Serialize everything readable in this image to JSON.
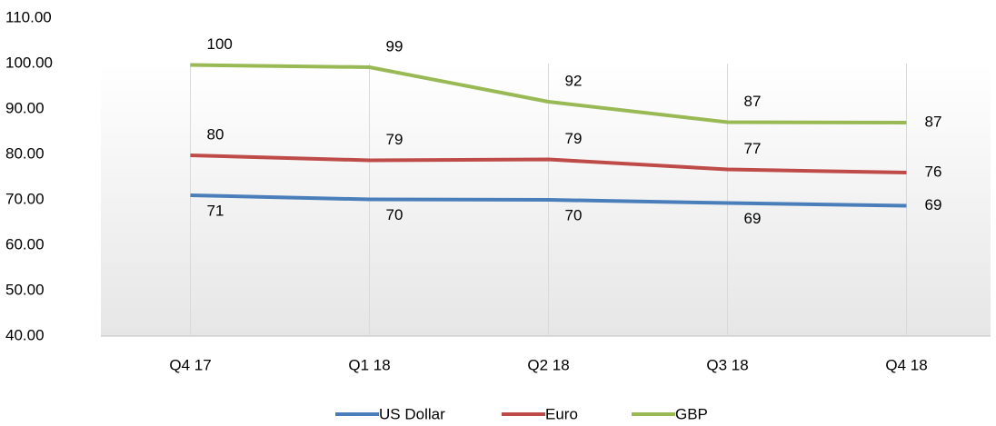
{
  "chart_data": {
    "type": "line",
    "categories": [
      "Q4 17",
      "Q1 18",
      "Q2 18",
      "Q3 18",
      "Q4 18"
    ],
    "series": [
      {
        "name": "US Dollar",
        "color": "#4a7ebb",
        "values": [
          71.0,
          70.1,
          70.0,
          69.3,
          68.7
        ],
        "value_labels": [
          "71",
          "70",
          "70",
          "69",
          "69"
        ]
      },
      {
        "name": "Euro",
        "color": "#be4b48",
        "values": [
          79.8,
          78.7,
          78.9,
          76.7,
          76.0
        ],
        "value_labels": [
          "80",
          "79",
          "79",
          "77",
          "76"
        ]
      },
      {
        "name": "GBP",
        "color": "#98b954",
        "values": [
          99.7,
          99.2,
          91.6,
          87.1,
          87.0
        ],
        "value_labels": [
          "100",
          "99",
          "92",
          "87",
          "87"
        ]
      }
    ],
    "ylim": [
      40,
      110
    ],
    "yticks": [
      {
        "value": 40,
        "label": "40.00"
      },
      {
        "value": 50,
        "label": "50.00"
      },
      {
        "value": 60,
        "label": "60.00"
      },
      {
        "value": 70,
        "label": "70.00"
      },
      {
        "value": 80,
        "label": "80.00"
      },
      {
        "value": 90,
        "label": "90.00"
      },
      {
        "value": 100,
        "label": "100.00"
      },
      {
        "value": 110,
        "label": "110.00"
      }
    ],
    "legend": "bottom"
  }
}
